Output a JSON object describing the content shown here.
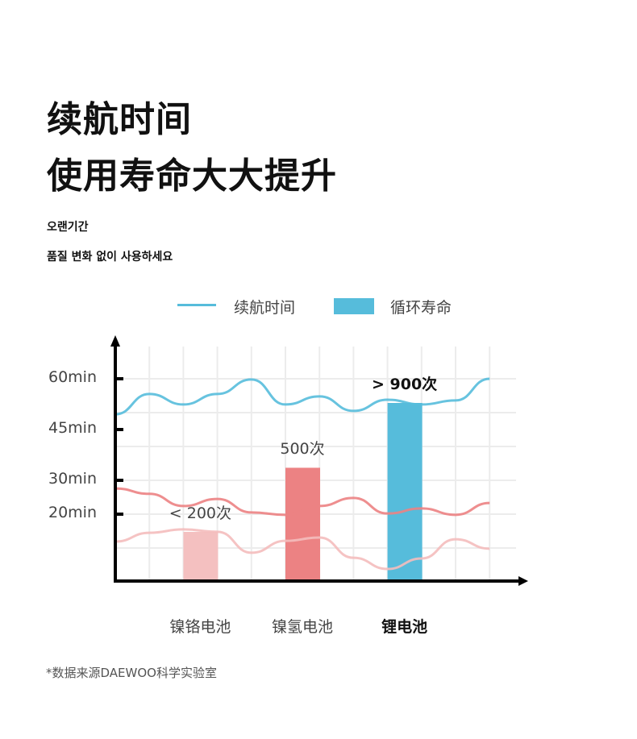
{
  "header": {
    "title_line1": "续航时间",
    "title_line2": "使用寿命大大提升",
    "sub_line1": "오랜기간",
    "sub_line2": "품질 변화 없이 사용하세요"
  },
  "footnote": "*数据来源DAEWOO科学实验室",
  "chart_data": {
    "type": "bar+line",
    "legend": [
      {
        "label": "续航时间",
        "kind": "line",
        "color": "#56bcdb"
      },
      {
        "label": "循环寿命",
        "kind": "bar",
        "color": "#56bcdb"
      }
    ],
    "legend_placement": "top-center",
    "y_axis": {
      "unit": "min",
      "ylim": [
        0,
        60
      ],
      "ticks": [
        {
          "value": 60,
          "label": "60min"
        },
        {
          "value": 45,
          "label": "45min"
        },
        {
          "value": 30,
          "label": "30min"
        },
        {
          "value": 20,
          "label": "20min"
        }
      ]
    },
    "grid": true,
    "categories": [
      "镍铬电池",
      "镍氢电池",
      "锂电池"
    ],
    "bars": [
      {
        "category": "镍铬电池",
        "cycles": 200,
        "label": "< 200次",
        "color": "#f4c0c0"
      },
      {
        "category": "镍氢电池",
        "cycles": 500,
        "label": "500次",
        "color": "#ec8283"
      },
      {
        "category": "锂电池",
        "cycles": 900,
        "label": "> 900次",
        "color": "#56bcdb",
        "highlight": true
      }
    ],
    "lines": [
      {
        "name": "锂电池续航",
        "color": "#56bcdb",
        "values": [
          49.5,
          55.5,
          52.4,
          55.5,
          59.8,
          52.4,
          54.8,
          50.5,
          53.8,
          52.4,
          53.6,
          60
        ]
      },
      {
        "name": "镍氢电池续航",
        "color": "#ec8283",
        "values": [
          27.6,
          26,
          22.4,
          24.5,
          20.5,
          19.8,
          22.4,
          24.8,
          20.2,
          21.7,
          19.8,
          23.3
        ]
      },
      {
        "name": "镍铬电池续航",
        "color": "#f4bcbc",
        "values": [
          11.9,
          14.5,
          15.5,
          14.8,
          8.6,
          12.1,
          13.1,
          7.1,
          3.8,
          6.9,
          12.6,
          9.8
        ]
      }
    ]
  }
}
